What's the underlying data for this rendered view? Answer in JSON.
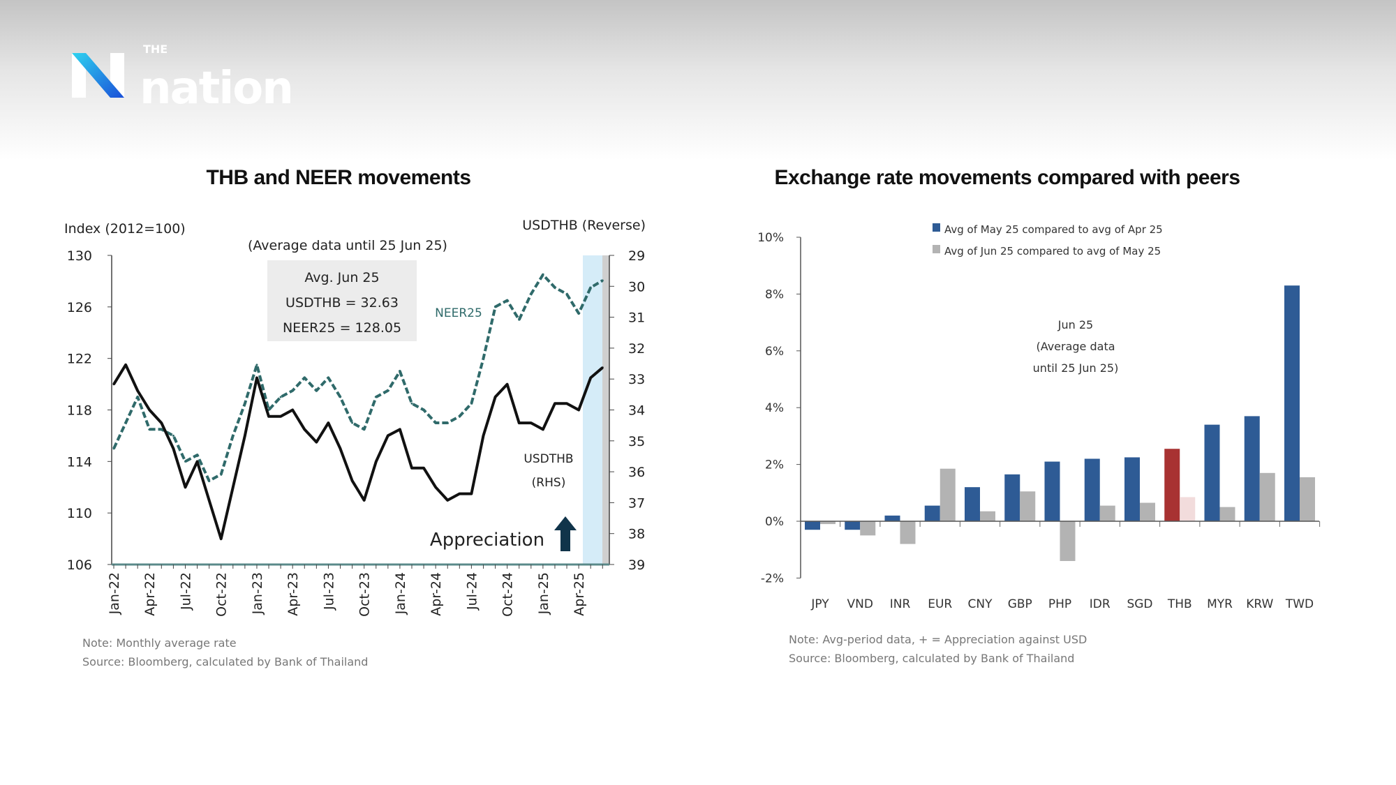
{
  "brand": {
    "logo_small": "THE",
    "logo_text": "nation"
  },
  "chart_data": [
    {
      "type": "line",
      "title": "THB and NEER movements",
      "subtitle": "(Average data until 25 Jun 25)",
      "ylabel_left": "Index (2012=100)",
      "ylabel_right": "USDTHB (Reverse)",
      "ylim_left": [
        106,
        130
      ],
      "yticks_left": [
        130,
        126,
        122,
        118,
        114,
        110,
        106
      ],
      "ylim_right_reversed": [
        29,
        39
      ],
      "yticks_right": [
        29,
        30,
        31,
        32,
        33,
        34,
        35,
        36,
        37,
        38,
        39
      ],
      "x": [
        "Jan-22",
        "Feb-22",
        "Mar-22",
        "Apr-22",
        "May-22",
        "Jun-22",
        "Jul-22",
        "Aug-22",
        "Sep-22",
        "Oct-22",
        "Nov-22",
        "Dec-22",
        "Jan-23",
        "Feb-23",
        "Mar-23",
        "Apr-23",
        "May-23",
        "Jun-23",
        "Jul-23",
        "Aug-23",
        "Sep-23",
        "Oct-23",
        "Nov-23",
        "Dec-23",
        "Jan-24",
        "Feb-24",
        "Mar-24",
        "Apr-24",
        "May-24",
        "Jun-24",
        "Jul-24",
        "Aug-24",
        "Sep-24",
        "Oct-24",
        "Nov-24",
        "Dec-24",
        "Jan-25",
        "Feb-25",
        "Mar-25",
        "Apr-25",
        "May-25",
        "Jun-25"
      ],
      "xtick_labels": [
        "Jan-22",
        "Apr-22",
        "Jul-22",
        "Oct-22",
        "Jan-23",
        "Apr-23",
        "Jul-23",
        "Oct-23",
        "Jan-24",
        "Apr-24",
        "Jul-24",
        "Oct-24",
        "Jan-25",
        "Apr-25"
      ],
      "series": [
        {
          "name": "NEER25",
          "axis": "left",
          "style": "dashed",
          "color": "#2f6a6a",
          "values": [
            115,
            117,
            119,
            116.5,
            116.5,
            116,
            114,
            114.5,
            112.5,
            113,
            116,
            118.5,
            121.5,
            118,
            119,
            119.5,
            120.5,
            119.5,
            120.5,
            119,
            117,
            116.5,
            119,
            119.5,
            121,
            118.5,
            118,
            117,
            117,
            117.5,
            118.5,
            122,
            126,
            126.5,
            125,
            127,
            128.5,
            127.5,
            127,
            125.5,
            127.5,
            128.05
          ]
        },
        {
          "name": "USDTHB",
          "label2": "(RHS)",
          "axis": "right",
          "style": "solid",
          "color": "#111111",
          "values": [
            33.17,
            32.54,
            33.38,
            34.0,
            34.42,
            35.25,
            36.5,
            35.67,
            36.92,
            38.17,
            36.5,
            34.83,
            32.96,
            34.21,
            34.21,
            34.0,
            34.63,
            35.04,
            34.42,
            35.25,
            36.29,
            36.92,
            35.67,
            34.83,
            34.63,
            35.88,
            35.88,
            36.5,
            36.92,
            36.71,
            36.71,
            34.83,
            33.58,
            33.17,
            34.42,
            34.42,
            34.63,
            33.79,
            33.79,
            34.0,
            32.96,
            32.63
          ]
        }
      ],
      "annotation_box": {
        "line1": "Avg. Jun 25",
        "line2": "USDTHB = 32.63",
        "line3": "NEER25 = 128.05"
      },
      "appreciation_label": "Appreciation",
      "note": "Note: Monthly average rate",
      "source": "Source: Bloomberg, calculated by Bank of Thailand"
    },
    {
      "type": "bar",
      "title": "Exchange rate movements compared with peers",
      "categories": [
        "JPY",
        "VND",
        "INR",
        "EUR",
        "CNY",
        "GBP",
        "PHP",
        "IDR",
        "SGD",
        "THB",
        "MYR",
        "KRW",
        "TWD"
      ],
      "ylim": [
        -2,
        10
      ],
      "yticks": [
        "10%",
        "8%",
        "6%",
        "4%",
        "2%",
        "0%",
        "-2%"
      ],
      "series": [
        {
          "name": "Avg of May 25 compared to avg of Apr 25",
          "color": "#2e5b95",
          "highlight": {
            "THB": "#a83232"
          },
          "values": [
            -0.3,
            -0.3,
            0.2,
            0.55,
            1.2,
            1.65,
            2.1,
            2.2,
            2.25,
            2.55,
            3.4,
            3.7,
            8.3
          ]
        },
        {
          "name": "Avg of Jun 25 compared to avg of May 25",
          "color": "#b3b3b3",
          "highlight": {
            "THB": "#f2dcdc"
          },
          "values": [
            -0.1,
            -0.5,
            -0.8,
            1.85,
            0.35,
            1.05,
            -1.4,
            0.55,
            0.65,
            0.85,
            0.5,
            1.7,
            1.55
          ]
        }
      ],
      "annotation": {
        "line1": "Jun 25",
        "line2": "(Average data",
        "line3": "until 25 Jun 25)"
      },
      "note": "Note: Avg-period data, + = Appreciation against USD",
      "source": "Source: Bloomberg, calculated by Bank of Thailand"
    }
  ]
}
